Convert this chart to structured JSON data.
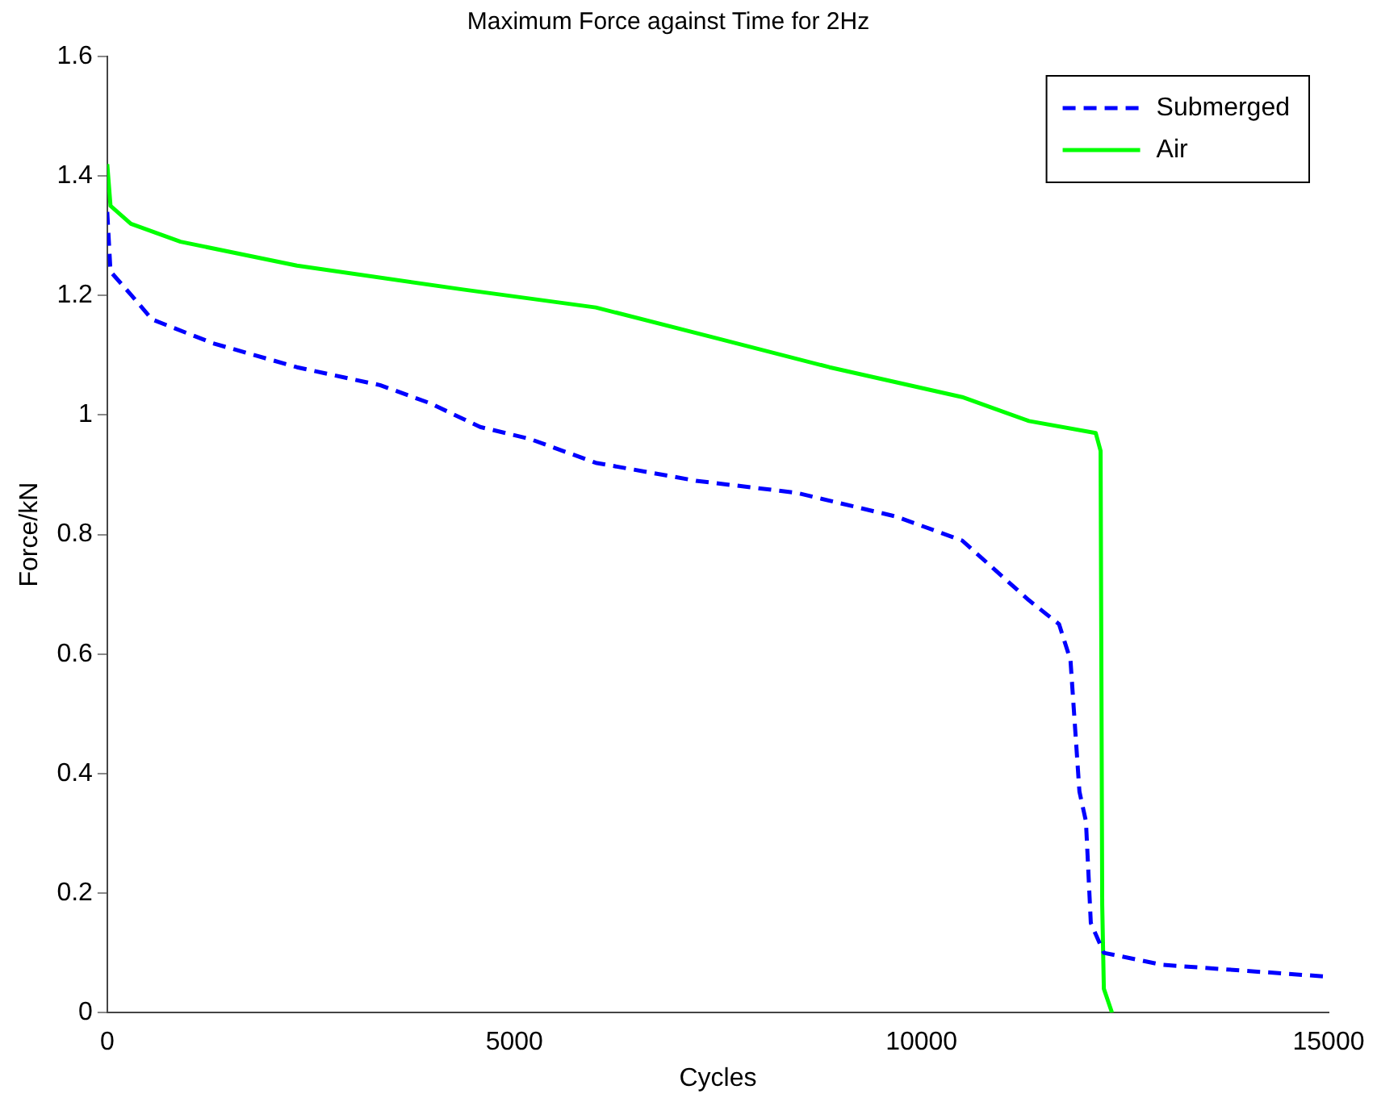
{
  "chart_data": {
    "type": "line",
    "title": "Maximum Force against Time for 2Hz",
    "xlabel": "Cycles",
    "ylabel": "Force/kN",
    "xlim": [
      0,
      15000
    ],
    "xticks": [
      0,
      5000,
      10000,
      15000
    ],
    "ylim": [
      0,
      1.6
    ],
    "yticks": [
      0,
      0.2,
      0.4,
      0.6,
      0.8,
      1,
      1.2,
      1.4,
      1.6
    ],
    "grid": false,
    "legend": "top right",
    "marker": "none",
    "series": [
      {
        "name": "Submerged",
        "color": "#0000ff",
        "line_style": "dashed",
        "x": [
          0,
          40,
          300,
          550,
          1300,
          2330,
          3350,
          3960,
          4580,
          5190,
          6000,
          7230,
          8460,
          9690,
          10500,
          11320,
          11690,
          11830,
          11940,
          12020,
          12080,
          12240,
          12960,
          13980,
          15000
        ],
        "values": [
          1.34,
          1.24,
          1.2,
          1.16,
          1.12,
          1.08,
          1.05,
          1.02,
          0.98,
          0.96,
          0.92,
          0.89,
          0.87,
          0.83,
          0.79,
          0.69,
          0.65,
          0.59,
          0.37,
          0.32,
          0.15,
          0.1,
          0.08,
          0.07,
          0.06
        ]
      },
      {
        "name": "Air",
        "color": "#00ff00",
        "line_style": "solid",
        "x": [
          0,
          40,
          290,
          900,
          2330,
          4370,
          6000,
          7440,
          8870,
          10500,
          11320,
          12140,
          12200,
          12220,
          12240,
          12340
        ],
        "values": [
          1.42,
          1.35,
          1.32,
          1.29,
          1.25,
          1.21,
          1.18,
          1.13,
          1.08,
          1.03,
          0.99,
          0.97,
          0.94,
          0.18,
          0.04,
          0
        ]
      }
    ]
  }
}
